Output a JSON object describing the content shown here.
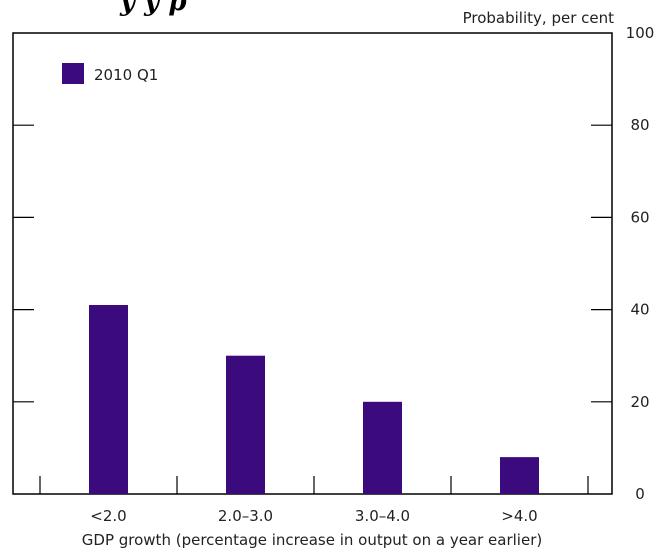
{
  "chart_data": {
    "type": "bar",
    "title": "",
    "title_fragment": "y      y      p",
    "ylabel": "Probability, per cent",
    "xlabel": "GDP growth (percentage increase in output on a year earlier)",
    "categories": [
      "<2.0",
      "2.0–3.0",
      "3.0–4.0",
      ">4.0"
    ],
    "series": [
      {
        "name": "2010 Q1",
        "values": [
          41,
          30,
          20,
          8
        ],
        "color": "#3b0a7c"
      }
    ],
    "ylim": [
      0,
      100
    ],
    "yticks": [
      0,
      20,
      40,
      60,
      80,
      100
    ],
    "ytick_labels": [
      "0",
      "20",
      "40",
      "60",
      "80",
      "100"
    ],
    "y_axis_side": "right",
    "grid": false,
    "legend_position": "top-left"
  }
}
